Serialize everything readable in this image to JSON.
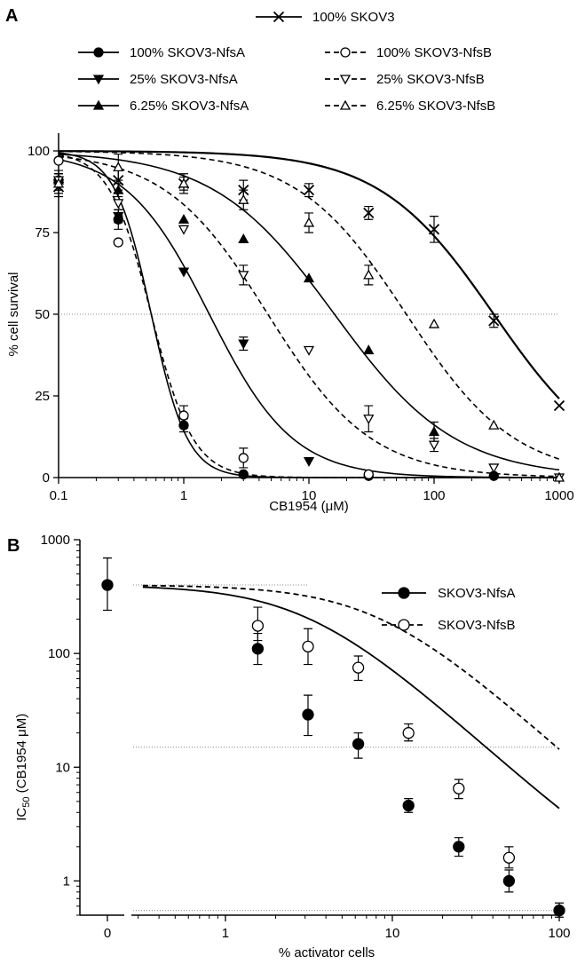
{
  "figure": {
    "panel_a_letter": "A",
    "panel_b_letter": "B"
  },
  "colors": {
    "ink": "#000000",
    "reference_line": "#888888"
  },
  "chart_data": [
    {
      "panel": "A",
      "type": "line",
      "x_scale": "log",
      "xlabel": "CB1954 (μM)",
      "ylabel": "% cell survival",
      "xlim": [
        0.1,
        1000
      ],
      "ylim": [
        0,
        100
      ],
      "x_ticks": [
        0.1,
        1,
        10,
        100,
        1000
      ],
      "x_tick_labels": [
        "0.1",
        "1",
        "10",
        "100",
        "1000"
      ],
      "y_ticks": [
        0,
        25,
        50,
        75,
        100
      ],
      "reference_lines": [
        {
          "axis": "y",
          "value": 50,
          "style": "dotted"
        }
      ],
      "grid": false,
      "legend_position": "top",
      "series": [
        {
          "name": "100% SKOV3",
          "marker": "x",
          "line": "solid",
          "ic50": 300,
          "hill": 0.95,
          "x": [
            0.1,
            0.3,
            1,
            3,
            10,
            30,
            100,
            300,
            1000
          ],
          "y": [
            89,
            91,
            90,
            88,
            88,
            81,
            76,
            48,
            22
          ],
          "err": [
            3,
            3,
            3,
            3,
            2,
            2,
            4,
            2,
            0
          ]
        },
        {
          "name": "100% SKOV3-NfsA",
          "marker": "filled-circle",
          "line": "solid",
          "ic50": 0.55,
          "hill": 3,
          "x": [
            0.1,
            0.3,
            1,
            3,
            30,
            300
          ],
          "y": [
            91,
            79,
            16,
            1,
            0.5,
            0.5
          ],
          "err": [
            2,
            3,
            2,
            0,
            0,
            0
          ]
        },
        {
          "name": "25% SKOV3-NfsA",
          "marker": "filled-triangle-down",
          "line": "solid",
          "ic50": 1.6,
          "hill": 1.3,
          "x": [
            0.1,
            0.3,
            1,
            3,
            10
          ],
          "y": [
            90,
            80,
            63,
            41,
            5
          ],
          "err": [
            2,
            2,
            0,
            2,
            0
          ]
        },
        {
          "name": "6.25% SKOV3-NfsA",
          "marker": "filled-triangle-up",
          "line": "solid",
          "ic50": 16,
          "hill": 0.9,
          "x": [
            0.1,
            0.3,
            1,
            3,
            10,
            30,
            100
          ],
          "y": [
            91,
            88,
            79,
            73,
            61,
            39,
            14
          ],
          "err": [
            2,
            2,
            0,
            0,
            0,
            0,
            3
          ]
        },
        {
          "name": "100% SKOV3-NfsB",
          "marker": "open-circle",
          "line": "dashed",
          "ic50": 0.55,
          "hill": 2.6,
          "x": [
            0.1,
            0.3,
            1,
            3,
            30
          ],
          "y": [
            97,
            72,
            19,
            6,
            1
          ],
          "err": [
            0,
            0,
            3,
            3,
            0
          ]
        },
        {
          "name": "25% SKOV3-NfsB",
          "marker": "open-triangle-down",
          "line": "dashed",
          "ic50": 4.7,
          "hill": 1.05,
          "x": [
            0.1,
            0.3,
            1,
            3,
            10,
            30,
            100,
            300,
            1000
          ],
          "y": [
            91,
            84,
            76,
            62,
            39,
            18,
            10,
            3,
            0
          ],
          "err": [
            3,
            0,
            0,
            3,
            0,
            4,
            2,
            0,
            0
          ]
        },
        {
          "name": "6.25% SKOV3-NfsB",
          "marker": "open-triangle-up",
          "line": "dashed",
          "ic50": 60,
          "hill": 1.0,
          "x": [
            0.1,
            0.3,
            1,
            3,
            10,
            30,
            100,
            300,
            1000
          ],
          "y": [
            90,
            95,
            90,
            85,
            78,
            62,
            47,
            16,
            0
          ],
          "err": [
            3,
            4,
            2,
            3,
            3,
            3,
            0,
            0,
            0
          ]
        }
      ]
    },
    {
      "panel": "B",
      "type": "scatter",
      "y_scale": "log",
      "x_scale": "log",
      "xlabel": "% activator cells",
      "ylabel": "IC50 (CB1954 μM)",
      "xlim": [
        0.28,
        100
      ],
      "ylim": [
        0.5,
        1000
      ],
      "x_ticks": [
        1,
        10,
        100
      ],
      "x_tick_labels": [
        "1",
        "10",
        "100"
      ],
      "x_break_tick_label": "0",
      "y_ticks": [
        1,
        10,
        100,
        1000
      ],
      "y_tick_labels": [
        "1",
        "10",
        "100",
        "1000"
      ],
      "reference_lines": [
        {
          "axis": "y",
          "value": 400,
          "x_range": [
            0.28,
            3.1
          ],
          "style": "dotted"
        },
        {
          "axis": "y",
          "value": 15,
          "x_range": [
            0.28,
            100
          ],
          "style": "dotted"
        },
        {
          "axis": "y",
          "value": 0.55,
          "x_range": [
            0.28,
            100
          ],
          "style": "dotted"
        }
      ],
      "grid": false,
      "legend_position": "top-right",
      "zero_point": {
        "x": 0,
        "y": 400,
        "err_low": 240,
        "err_high": 690
      },
      "series": [
        {
          "name": "SKOV3-NfsA",
          "marker": "filled-circle",
          "line": "solid",
          "fit_top": 400,
          "fit_bottom": 0.55,
          "ec50": 3.2,
          "hill": 1.35,
          "x": [
            1.5625,
            3.125,
            6.25,
            12.5,
            25,
            50,
            100
          ],
          "y": [
            110,
            29,
            16,
            4.6,
            2.0,
            1.0,
            0.55
          ],
          "err_low": [
            80,
            19,
            12,
            4.0,
            1.65,
            0.8,
            0.48
          ],
          "err_high": [
            150,
            43,
            20,
            5.3,
            2.4,
            1.25,
            0.64
          ]
        },
        {
          "name": "SKOV3-NfsB",
          "marker": "open-circle",
          "line": "dashed",
          "fit_top": 400,
          "fit_bottom": 0.55,
          "ec50": 8.5,
          "hill": 1.35,
          "x": [
            1.5625,
            3.125,
            6.25,
            12.5,
            25,
            50
          ],
          "y": [
            175,
            115,
            75,
            20,
            6.5,
            1.6
          ],
          "err_low": [
            130,
            80,
            58,
            17,
            5.3,
            1.3
          ],
          "err_high": [
            255,
            165,
            95,
            24,
            7.8,
            2.0
          ]
        }
      ]
    }
  ]
}
